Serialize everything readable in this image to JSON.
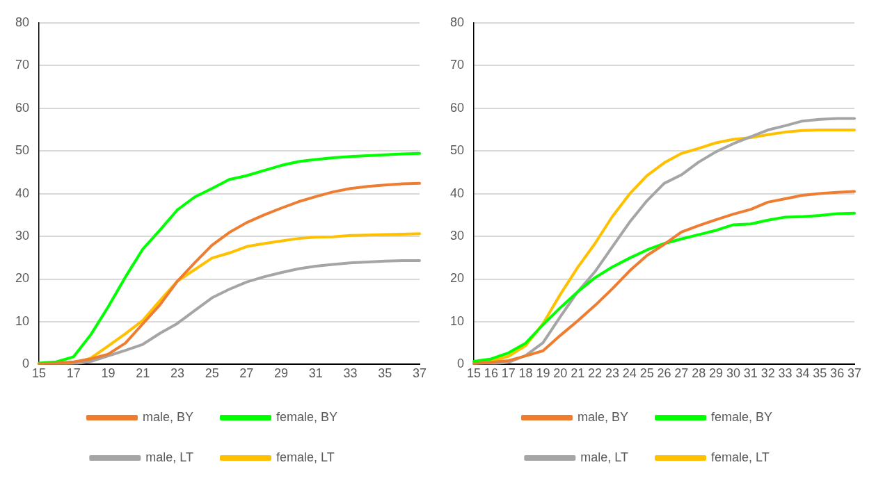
{
  "chart_data": [
    {
      "type": "line",
      "categories": [
        "15",
        null,
        "17",
        null,
        "19",
        null,
        "21",
        null,
        "23",
        null,
        "25",
        null,
        "27",
        null,
        "29",
        null,
        "31",
        null,
        "33",
        null,
        "35",
        null,
        "37"
      ],
      "ylim": [
        0,
        80
      ],
      "yticks": [
        0,
        10,
        20,
        30,
        40,
        50,
        60,
        70,
        80
      ],
      "grid": "y",
      "legend": "bottom",
      "marker": "none",
      "line_style": "solid",
      "series": [
        {
          "name": "male, BY",
          "color": "#ed7d31",
          "values": [
            0.2,
            0.3,
            0.6,
            1.3,
            2.4,
            5,
            9.5,
            14,
            19.5,
            23.8,
            27.9,
            30.9,
            33.2,
            35,
            36.6,
            38.1,
            39.3,
            40.4,
            41.2,
            41.7,
            42,
            42.3,
            42.4
          ]
        },
        {
          "name": "female, BY",
          "color": "#00ff00",
          "values": [
            0.3,
            0.6,
            1.8,
            7,
            13.5,
            20.5,
            27,
            31.5,
            36.2,
            39.2,
            41.2,
            43.3,
            44.2,
            45.4,
            46.6,
            47.5,
            48,
            48.4,
            48.7,
            48.9,
            49.1,
            49.3,
            49.4
          ]
        },
        {
          "name": "male, LT",
          "color": "#a5a5a5",
          "values": [
            0,
            0,
            0.1,
            0.7,
            2,
            3.3,
            4.7,
            7.3,
            9.6,
            12.6,
            15.6,
            17.6,
            19.3,
            20.5,
            21.5,
            22.4,
            23,
            23.4,
            23.8,
            24,
            24.2,
            24.3,
            24.3
          ]
        },
        {
          "name": "female, LT",
          "color": "#ffc000",
          "values": [
            0.1,
            0.1,
            0.3,
            1.5,
            4.3,
            7.2,
            10.3,
            15,
            19.5,
            22.2,
            24.9,
            26.1,
            27.6,
            28.3,
            28.9,
            29.5,
            29.8,
            29.9,
            30.2,
            30.3,
            30.4,
            30.5,
            30.6
          ]
        }
      ]
    },
    {
      "type": "line",
      "categories": [
        "15",
        "16",
        "17",
        "18",
        "19",
        "20",
        "21",
        "22",
        "23",
        "24",
        "25",
        "26",
        "27",
        "28",
        "29",
        "30",
        "31",
        "32",
        "33",
        "34",
        "35",
        "36",
        "37"
      ],
      "ylim": [
        0,
        80
      ],
      "yticks": [
        0,
        10,
        20,
        30,
        40,
        50,
        60,
        70,
        80
      ],
      "grid": "y",
      "legend": "bottom",
      "marker": "none",
      "line_style": "solid",
      "series": [
        {
          "name": "male, BY",
          "color": "#ed7d31",
          "values": [
            0.2,
            0.5,
            0.9,
            2,
            3.2,
            6.8,
            10.2,
            13.8,
            17.7,
            21.9,
            25.5,
            28.1,
            31,
            32.5,
            33.9,
            35.2,
            36.3,
            38,
            38.8,
            39.6,
            40,
            40.3,
            40.5
          ]
        },
        {
          "name": "female, BY",
          "color": "#00ff00",
          "values": [
            0.7,
            1.3,
            2.7,
            5,
            9.3,
            13.3,
            17,
            20.3,
            22.8,
            24.9,
            26.8,
            28.3,
            29.4,
            30.4,
            31.4,
            32.7,
            32.9,
            33.8,
            34.5,
            34.6,
            34.9,
            35.3,
            35.4
          ]
        },
        {
          "name": "male, LT",
          "color": "#a5a5a5",
          "values": [
            0,
            0.1,
            0.5,
            2.1,
            5.1,
            11.2,
            17,
            21.7,
            27.5,
            33.3,
            38.3,
            42.4,
            44.4,
            47.4,
            49.8,
            51.7,
            53.3,
            54.9,
            55.9,
            57,
            57.4,
            57.6,
            57.6
          ]
        },
        {
          "name": "female, LT",
          "color": "#ffc000",
          "values": [
            0.2,
            0.8,
            1.9,
            4.4,
            9.6,
            16.4,
            22.7,
            28.3,
            34.6,
            39.9,
            44.2,
            47.2,
            49.4,
            50.6,
            51.9,
            52.7,
            53.1,
            53.8,
            54.4,
            54.8,
            54.9,
            54.9,
            54.9
          ]
        }
      ]
    }
  ]
}
